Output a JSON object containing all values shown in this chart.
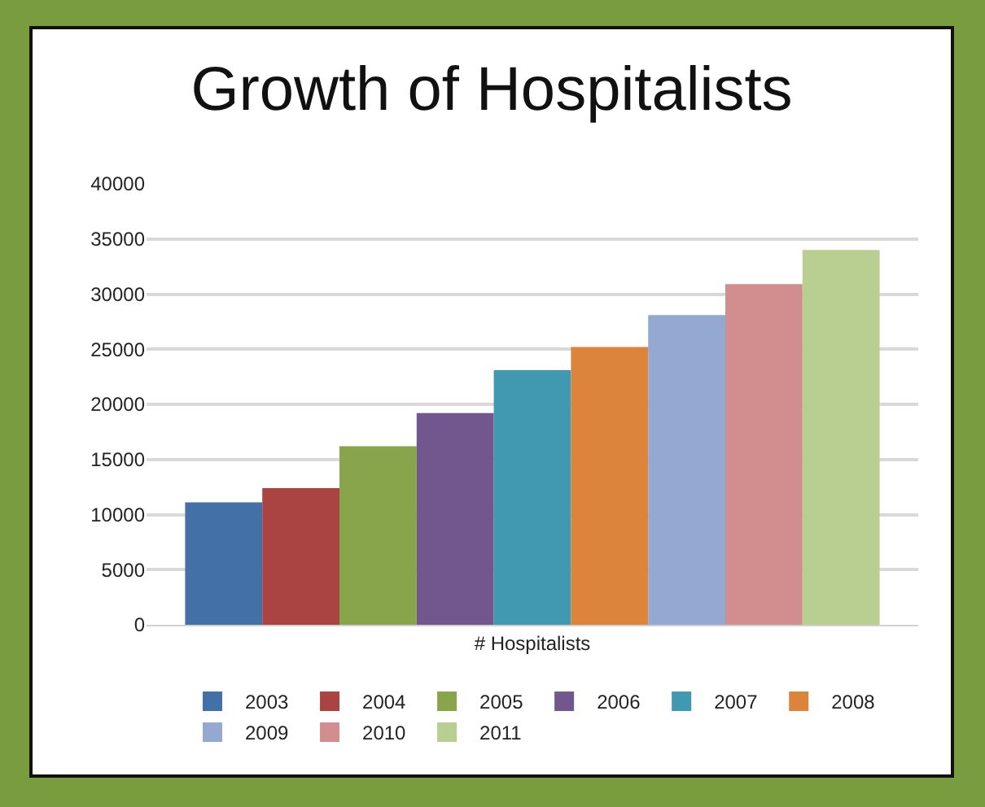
{
  "chart_data": {
    "type": "bar",
    "title": "Growth of Hospitalists",
    "categories": [
      "# Hospitalists"
    ],
    "series": [
      {
        "name": "2003",
        "color": "#4470a8",
        "values": [
          11100
        ]
      },
      {
        "name": "2004",
        "color": "#a94442",
        "values": [
          12400
        ]
      },
      {
        "name": "2005",
        "color": "#88a54c",
        "values": [
          16200
        ]
      },
      {
        "name": "2006",
        "color": "#71578e",
        "values": [
          19200
        ]
      },
      {
        "name": "2007",
        "color": "#4099b0",
        "values": [
          23100
        ]
      },
      {
        "name": "2008",
        "color": "#dc833c",
        "values": [
          25200
        ]
      },
      {
        "name": "2009",
        "color": "#93a9d2",
        "values": [
          28100
        ]
      },
      {
        "name": "2010",
        "color": "#d28e8e",
        "values": [
          30900
        ]
      },
      {
        "name": "2011",
        "color": "#b9cf92",
        "values": [
          34000
        ]
      }
    ],
    "ylim": [
      0,
      40000
    ],
    "yticks": [
      0,
      5000,
      10000,
      15000,
      20000,
      25000,
      30000,
      35000,
      40000
    ],
    "grid": "y",
    "legend": "bottom"
  }
}
